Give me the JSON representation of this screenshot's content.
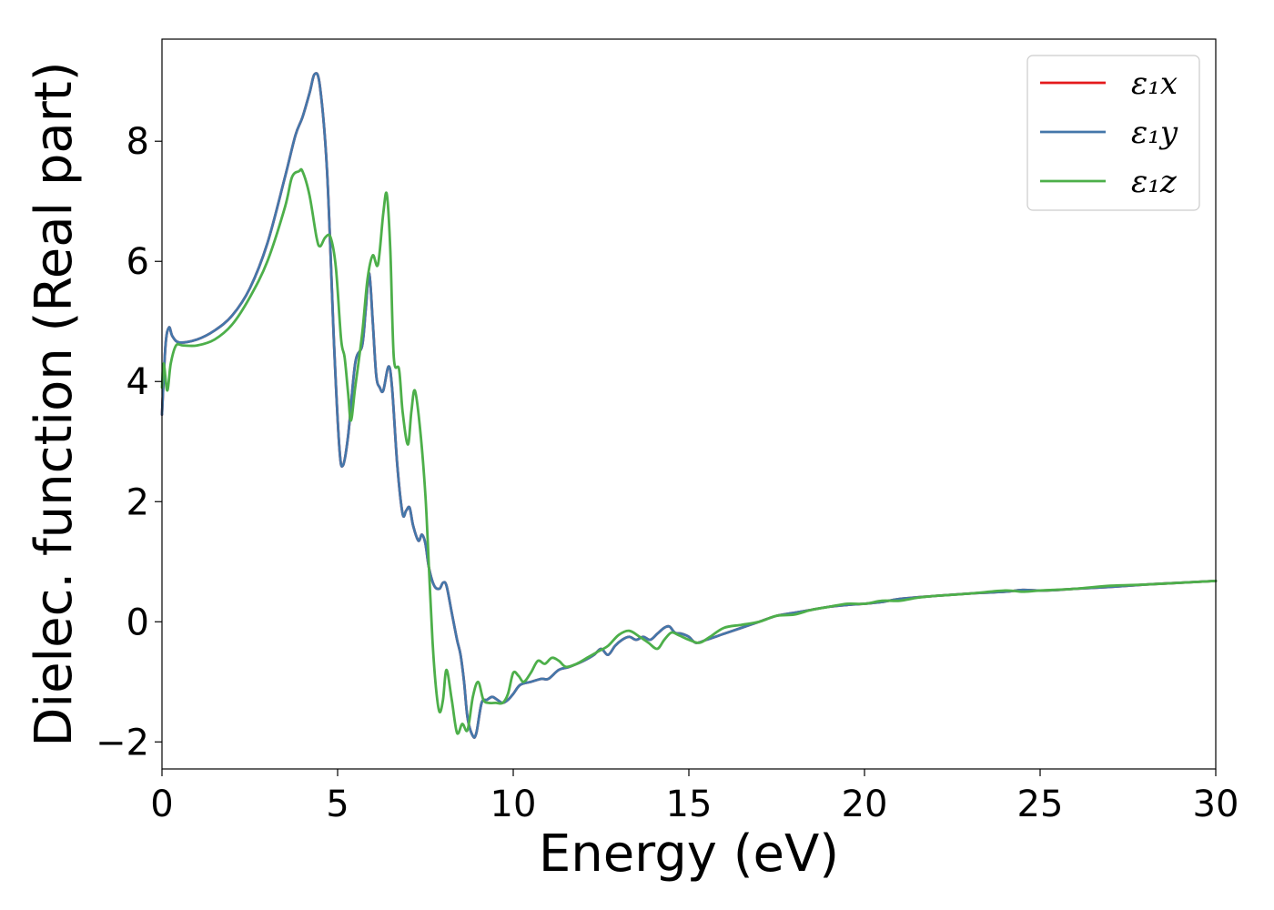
{
  "chart_data": {
    "type": "line",
    "xlabel": "Energy (eV)",
    "ylabel": "Dielec. function (Real part)",
    "xlim": [
      0,
      30
    ],
    "ylim": [
      -2.45,
      9.7
    ],
    "xticks": [
      0,
      5,
      10,
      15,
      20,
      25,
      30
    ],
    "xtick_labels": [
      "0",
      "5",
      "10",
      "15",
      "20",
      "25",
      "30"
    ],
    "yticks": [
      -2,
      0,
      2,
      4,
      6,
      8
    ],
    "ytick_labels": [
      "−2",
      "0",
      "2",
      "4",
      "6",
      "8"
    ],
    "grid": false,
    "legend_position": "top-right",
    "series": [
      {
        "name": "ε₁x",
        "color": "#e41a1c",
        "x": [
          0,
          0.1,
          0.2,
          0.3,
          0.5,
          1.0,
          1.5,
          2.0,
          2.5,
          3.0,
          3.5,
          3.8,
          4.0,
          4.2,
          4.35,
          4.5,
          4.7,
          4.9,
          5.05,
          5.15,
          5.3,
          5.5,
          5.7,
          5.8,
          5.9,
          6.0,
          6.1,
          6.2,
          6.3,
          6.45,
          6.55,
          6.7,
          6.85,
          6.95,
          7.05,
          7.15,
          7.3,
          7.4,
          7.5,
          7.6,
          7.75,
          7.9,
          8.0,
          8.1,
          8.25,
          8.4,
          8.5,
          8.6,
          8.7,
          8.85,
          8.95,
          9.1,
          9.25,
          9.4,
          9.55,
          9.7,
          9.85,
          10.0,
          10.2,
          10.5,
          10.8,
          11.0,
          11.3,
          11.6,
          12.0,
          12.3,
          12.5,
          12.7,
          12.9,
          13.1,
          13.3,
          13.5,
          13.7,
          13.9,
          14.1,
          14.3,
          14.45,
          14.6,
          14.8,
          15.0,
          15.2,
          15.5,
          16.0,
          16.5,
          17.0,
          17.5,
          18.0,
          18.5,
          19.0,
          19.5,
          20.0,
          20.5,
          21.0,
          22.0,
          23.0,
          24.0,
          24.5,
          25.0,
          25.5,
          26.0,
          27.0,
          28.0,
          29.0,
          30.0
        ],
        "y": [
          3.45,
          4.6,
          4.9,
          4.75,
          4.65,
          4.7,
          4.85,
          5.1,
          5.55,
          6.3,
          7.4,
          8.1,
          8.4,
          8.8,
          9.12,
          8.9,
          7.5,
          4.6,
          2.9,
          2.6,
          3.1,
          4.3,
          4.6,
          5.2,
          5.8,
          5.0,
          4.1,
          3.9,
          3.85,
          4.25,
          3.9,
          2.6,
          1.8,
          1.85,
          1.9,
          1.6,
          1.35,
          1.45,
          1.3,
          0.9,
          0.6,
          0.55,
          0.65,
          0.6,
          0.15,
          -0.3,
          -0.55,
          -1.0,
          -1.6,
          -1.9,
          -1.85,
          -1.35,
          -1.3,
          -1.25,
          -1.3,
          -1.35,
          -1.3,
          -1.2,
          -1.05,
          -1.0,
          -0.95,
          -0.95,
          -0.8,
          -0.75,
          -0.65,
          -0.55,
          -0.45,
          -0.55,
          -0.4,
          -0.3,
          -0.25,
          -0.3,
          -0.25,
          -0.3,
          -0.2,
          -0.1,
          -0.08,
          -0.18,
          -0.2,
          -0.25,
          -0.35,
          -0.3,
          -0.2,
          -0.1,
          0.0,
          0.1,
          0.15,
          0.2,
          0.25,
          0.28,
          0.3,
          0.33,
          0.38,
          0.43,
          0.47,
          0.5,
          0.53,
          0.52,
          0.53,
          0.55,
          0.58,
          0.62,
          0.65,
          0.68
        ]
      },
      {
        "name": "ε₁y",
        "color": "#4477aa",
        "x": [
          0,
          0.1,
          0.2,
          0.3,
          0.5,
          1.0,
          1.5,
          2.0,
          2.5,
          3.0,
          3.5,
          3.8,
          4.0,
          4.2,
          4.35,
          4.5,
          4.7,
          4.9,
          5.05,
          5.15,
          5.3,
          5.5,
          5.7,
          5.8,
          5.9,
          6.0,
          6.1,
          6.2,
          6.3,
          6.45,
          6.55,
          6.7,
          6.85,
          6.95,
          7.05,
          7.15,
          7.3,
          7.4,
          7.5,
          7.6,
          7.75,
          7.9,
          8.0,
          8.1,
          8.25,
          8.4,
          8.5,
          8.6,
          8.7,
          8.85,
          8.95,
          9.1,
          9.25,
          9.4,
          9.55,
          9.7,
          9.85,
          10.0,
          10.2,
          10.5,
          10.8,
          11.0,
          11.3,
          11.6,
          12.0,
          12.3,
          12.5,
          12.7,
          12.9,
          13.1,
          13.3,
          13.5,
          13.7,
          13.9,
          14.1,
          14.3,
          14.45,
          14.6,
          14.8,
          15.0,
          15.2,
          15.5,
          16.0,
          16.5,
          17.0,
          17.5,
          18.0,
          18.5,
          19.0,
          19.5,
          20.0,
          20.5,
          21.0,
          22.0,
          23.0,
          24.0,
          24.5,
          25.0,
          25.5,
          26.0,
          27.0,
          28.0,
          29.0,
          30.0
        ],
        "y": [
          3.45,
          4.6,
          4.9,
          4.75,
          4.65,
          4.7,
          4.85,
          5.1,
          5.55,
          6.3,
          7.4,
          8.1,
          8.4,
          8.8,
          9.12,
          8.9,
          7.5,
          4.6,
          2.9,
          2.6,
          3.1,
          4.3,
          4.6,
          5.2,
          5.8,
          5.0,
          4.1,
          3.9,
          3.85,
          4.25,
          3.9,
          2.6,
          1.8,
          1.85,
          1.9,
          1.6,
          1.35,
          1.45,
          1.3,
          0.9,
          0.6,
          0.55,
          0.65,
          0.6,
          0.15,
          -0.3,
          -0.55,
          -1.0,
          -1.6,
          -1.9,
          -1.85,
          -1.35,
          -1.3,
          -1.25,
          -1.3,
          -1.35,
          -1.3,
          -1.2,
          -1.05,
          -1.0,
          -0.95,
          -0.95,
          -0.8,
          -0.75,
          -0.65,
          -0.55,
          -0.45,
          -0.55,
          -0.4,
          -0.3,
          -0.25,
          -0.3,
          -0.25,
          -0.3,
          -0.2,
          -0.1,
          -0.08,
          -0.18,
          -0.2,
          -0.25,
          -0.35,
          -0.3,
          -0.2,
          -0.1,
          0.0,
          0.1,
          0.15,
          0.2,
          0.25,
          0.28,
          0.3,
          0.33,
          0.38,
          0.43,
          0.47,
          0.5,
          0.53,
          0.52,
          0.53,
          0.55,
          0.58,
          0.62,
          0.65,
          0.68
        ]
      },
      {
        "name": "ε₁z",
        "color": "#4daf4a",
        "x": [
          0,
          0.05,
          0.15,
          0.25,
          0.4,
          0.6,
          1.0,
          1.5,
          2.0,
          2.5,
          3.0,
          3.5,
          3.7,
          3.9,
          4.0,
          4.2,
          4.4,
          4.5,
          4.65,
          4.8,
          4.95,
          5.1,
          5.2,
          5.3,
          5.38,
          5.5,
          5.7,
          5.85,
          6.0,
          6.15,
          6.3,
          6.4,
          6.5,
          6.6,
          6.75,
          6.85,
          7.0,
          7.1,
          7.2,
          7.35,
          7.5,
          7.6,
          7.7,
          7.8,
          7.9,
          8.0,
          8.1,
          8.25,
          8.4,
          8.55,
          8.7,
          8.85,
          9.0,
          9.15,
          9.3,
          9.5,
          9.7,
          9.85,
          10.0,
          10.15,
          10.3,
          10.5,
          10.7,
          10.9,
          11.1,
          11.3,
          11.5,
          11.8,
          12.1,
          12.4,
          12.7,
          13.0,
          13.3,
          13.6,
          13.85,
          14.1,
          14.3,
          14.5,
          14.7,
          15.0,
          15.3,
          15.6,
          16.0,
          16.5,
          17.0,
          17.5,
          18.0,
          18.5,
          19.0,
          19.5,
          20.0,
          20.5,
          21.0,
          21.5,
          22.0,
          23.0,
          24.0,
          24.5,
          25.0,
          26.0,
          27.0,
          28.0,
          29.0,
          30.0
        ],
        "y": [
          3.9,
          4.3,
          3.85,
          4.3,
          4.6,
          4.6,
          4.6,
          4.7,
          4.95,
          5.4,
          6.0,
          6.9,
          7.4,
          7.5,
          7.5,
          7.1,
          6.4,
          6.25,
          6.4,
          6.4,
          5.9,
          4.7,
          4.4,
          3.8,
          3.35,
          3.9,
          4.8,
          5.7,
          6.1,
          5.95,
          6.8,
          7.12,
          6.2,
          4.4,
          4.2,
          3.5,
          2.95,
          3.5,
          3.85,
          3.2,
          2.1,
          0.9,
          -0.3,
          -1.1,
          -1.5,
          -1.3,
          -0.8,
          -1.3,
          -1.85,
          -1.7,
          -1.8,
          -1.25,
          -1.0,
          -1.3,
          -1.35,
          -1.35,
          -1.35,
          -1.2,
          -0.85,
          -0.9,
          -1.0,
          -0.85,
          -0.65,
          -0.7,
          -0.6,
          -0.65,
          -0.75,
          -0.7,
          -0.6,
          -0.5,
          -0.4,
          -0.22,
          -0.15,
          -0.25,
          -0.35,
          -0.45,
          -0.3,
          -0.18,
          -0.22,
          -0.3,
          -0.35,
          -0.25,
          -0.1,
          -0.05,
          0.0,
          0.1,
          0.12,
          0.2,
          0.25,
          0.3,
          0.3,
          0.35,
          0.35,
          0.4,
          0.43,
          0.47,
          0.52,
          0.5,
          0.52,
          0.55,
          0.6,
          0.62,
          0.65,
          0.68
        ]
      }
    ]
  }
}
